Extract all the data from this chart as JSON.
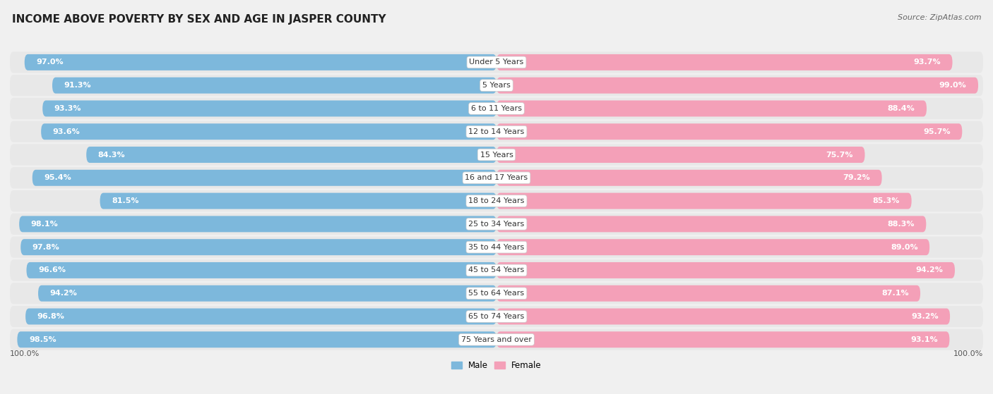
{
  "title": "INCOME ABOVE POVERTY BY SEX AND AGE IN JASPER COUNTY",
  "source": "Source: ZipAtlas.com",
  "categories": [
    "Under 5 Years",
    "5 Years",
    "6 to 11 Years",
    "12 to 14 Years",
    "15 Years",
    "16 and 17 Years",
    "18 to 24 Years",
    "25 to 34 Years",
    "35 to 44 Years",
    "45 to 54 Years",
    "55 to 64 Years",
    "65 to 74 Years",
    "75 Years and over"
  ],
  "male_values": [
    97.0,
    91.3,
    93.3,
    93.6,
    84.3,
    95.4,
    81.5,
    98.1,
    97.8,
    96.6,
    94.2,
    96.8,
    98.5
  ],
  "female_values": [
    93.7,
    99.0,
    88.4,
    95.7,
    75.7,
    79.2,
    85.3,
    88.3,
    89.0,
    94.2,
    87.1,
    93.2,
    93.1
  ],
  "male_color": "#7DB8DC",
  "female_color": "#F4A0B8",
  "male_label": "Male",
  "female_label": "Female",
  "background_color": "#f0f0f0",
  "row_bg_color": "#ffffff",
  "title_fontsize": 11,
  "source_fontsize": 8,
  "value_fontsize": 8,
  "cat_fontsize": 8,
  "bar_height": 0.7,
  "x_max": 100
}
